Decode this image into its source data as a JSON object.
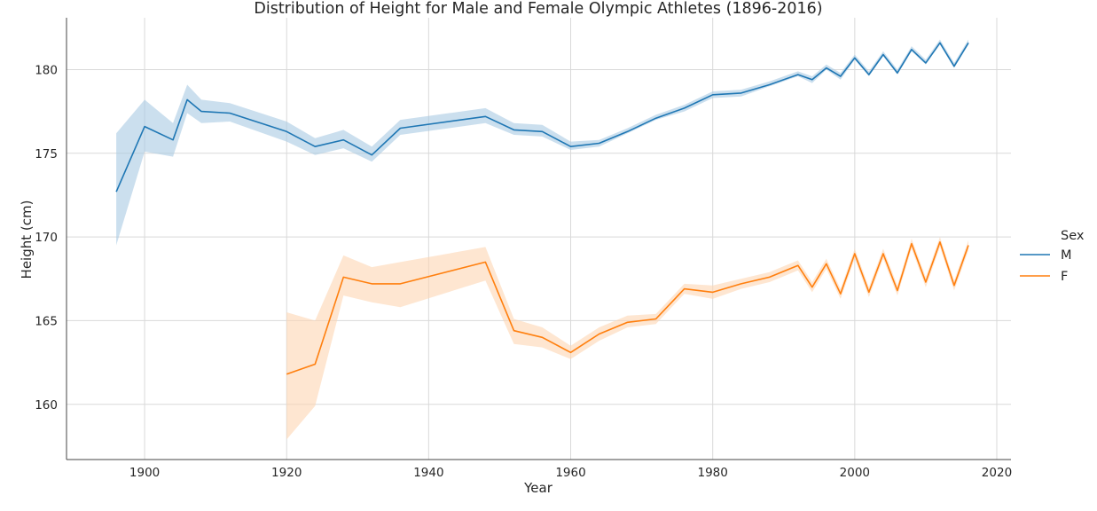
{
  "chart_data": {
    "type": "line",
    "title": "Distribution of Height for Male and Female Olympic Athletes (1896-2016)",
    "xlabel": "Year",
    "ylabel": "Height (cm)",
    "xlim": [
      1889,
      2022
    ],
    "ylim": [
      156.7,
      183.1
    ],
    "xticks": [
      1900,
      1920,
      1940,
      1960,
      1980,
      2000,
      2020
    ],
    "yticks": [
      160,
      165,
      170,
      175,
      180
    ],
    "grid": true,
    "legend": {
      "title": "Sex",
      "placement": "right"
    },
    "series": [
      {
        "name": "M",
        "color": "#1f77b4",
        "band_color": "#a9c9e2",
        "x": [
          1896,
          1900,
          1904,
          1906,
          1908,
          1912,
          1920,
          1924,
          1928,
          1932,
          1936,
          1948,
          1952,
          1956,
          1960,
          1964,
          1968,
          1972,
          1976,
          1980,
          1984,
          1988,
          1992,
          1994,
          1996,
          1998,
          2000,
          2002,
          2004,
          2006,
          2008,
          2010,
          2012,
          2014,
          2016
        ],
        "y": [
          172.7,
          176.6,
          175.8,
          178.2,
          177.5,
          177.4,
          176.3,
          175.4,
          175.8,
          174.9,
          176.5,
          177.2,
          176.4,
          176.3,
          175.4,
          175.6,
          176.3,
          177.1,
          177.7,
          178.5,
          178.6,
          179.1,
          179.7,
          179.4,
          180.1,
          179.6,
          180.7,
          179.7,
          180.9,
          179.8,
          181.2,
          180.4,
          181.6,
          180.2,
          181.6
        ],
        "lower": [
          169.5,
          175.1,
          174.8,
          177.4,
          176.8,
          176.9,
          175.7,
          174.9,
          175.3,
          174.5,
          176.1,
          176.8,
          176.1,
          176.0,
          175.2,
          175.4,
          176.2,
          177.0,
          177.5,
          178.3,
          178.4,
          179.0,
          179.6,
          179.2,
          180.0,
          179.4,
          180.6,
          179.6,
          180.8,
          179.7,
          181.1,
          180.3,
          181.5,
          180.1,
          181.5
        ],
        "upper": [
          176.2,
          178.2,
          176.8,
          179.1,
          178.2,
          178.0,
          176.9,
          175.9,
          176.4,
          175.4,
          177.0,
          177.7,
          176.8,
          176.7,
          175.7,
          175.8,
          176.5,
          177.3,
          177.9,
          178.7,
          178.8,
          179.3,
          179.9,
          179.6,
          180.3,
          179.8,
          180.9,
          179.9,
          181.1,
          180.0,
          181.4,
          180.6,
          181.8,
          180.4,
          181.8
        ]
      },
      {
        "name": "F",
        "color": "#ff7f0e",
        "band_color": "#fdd6b3",
        "x": [
          1920,
          1924,
          1928,
          1932,
          1936,
          1948,
          1952,
          1956,
          1960,
          1964,
          1968,
          1972,
          1976,
          1980,
          1984,
          1988,
          1992,
          1994,
          1996,
          1998,
          2000,
          2002,
          2004,
          2006,
          2008,
          2010,
          2012,
          2014,
          2016
        ],
        "y": [
          161.8,
          162.4,
          167.6,
          167.2,
          167.2,
          168.5,
          164.4,
          164.0,
          163.1,
          164.2,
          164.9,
          165.1,
          166.9,
          166.7,
          167.2,
          167.6,
          168.3,
          167.0,
          168.4,
          166.6,
          169.0,
          166.7,
          169.0,
          166.8,
          169.6,
          167.3,
          169.7,
          167.1,
          169.5
        ],
        "lower": [
          157.9,
          159.9,
          166.5,
          166.1,
          165.8,
          167.4,
          163.6,
          163.4,
          162.7,
          163.8,
          164.6,
          164.8,
          166.6,
          166.3,
          166.9,
          167.3,
          168.0,
          166.7,
          168.1,
          166.3,
          168.7,
          166.4,
          168.7,
          166.5,
          169.3,
          167.0,
          169.4,
          166.8,
          169.2
        ],
        "upper": [
          165.5,
          165.0,
          168.9,
          168.2,
          168.5,
          169.4,
          165.1,
          164.6,
          163.5,
          164.6,
          165.3,
          165.4,
          167.2,
          167.1,
          167.5,
          167.9,
          168.6,
          167.3,
          168.7,
          166.9,
          169.3,
          167.0,
          169.3,
          167.1,
          169.9,
          167.6,
          170.0,
          167.4,
          169.8
        ]
      }
    ]
  }
}
